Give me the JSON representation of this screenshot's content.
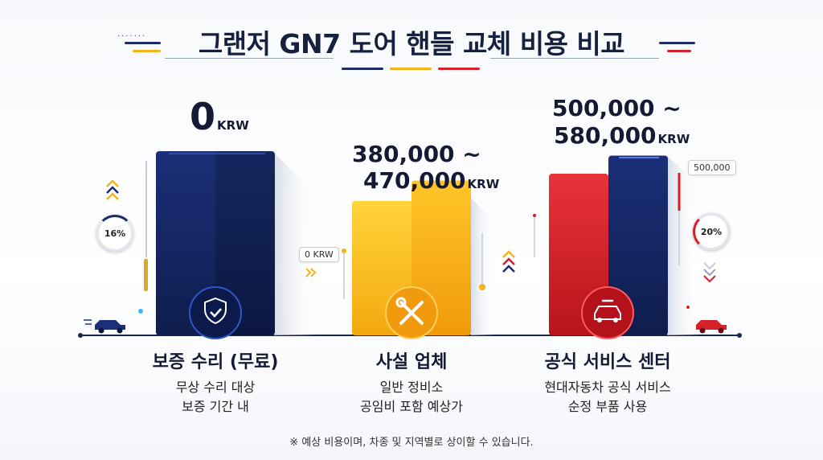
{
  "title": "그랜저 GN7 도어 핸들 교체 비용 비교",
  "colors": {
    "navy": "#13245e",
    "gold": "#f5b21a",
    "red": "#d6202a",
    "dark_text": "#141a33"
  },
  "value_labels": {
    "warranty_value": "0",
    "warranty_unit": "KRW",
    "private_line1": "380,000 ~",
    "private_line2": "470,000",
    "private_unit": "KRW",
    "official_line1": "500,000 ~",
    "official_line2": "580,000",
    "official_unit": "KRW"
  },
  "side_labels": {
    "zero_tag": "0 KRW",
    "official_tag": "500,000",
    "left_ring": "16%",
    "right_ring": "20%"
  },
  "categories": [
    {
      "title": "보증 수리 (무료)",
      "desc1": "무상 수리 대상",
      "desc2": "보증 기간 내",
      "icon": "shield-check-icon"
    },
    {
      "title": "사설 업체",
      "desc1": "일반 정비소",
      "desc2": "공임비 포함 예상가",
      "icon": "wrench-screwdriver-icon"
    },
    {
      "title": "공식 서비스 센터",
      "desc1": "현대자동차 공식 서비스",
      "desc2": "순정 부품 사용",
      "icon": "car-wrench-icon"
    }
  ],
  "chart_data": {
    "type": "bar",
    "categories": [
      "보증 수리 (무료)",
      "사설 업체",
      "공식 서비스 센터"
    ],
    "unit": "KRW",
    "ranges": [
      {
        "category": "보증 수리 (무료)",
        "min": 0,
        "max": 0
      },
      {
        "category": "사설 업체",
        "min": 380000,
        "max": 470000
      },
      {
        "category": "공식 서비스 센터",
        "min": 500000,
        "max": 580000
      }
    ]
  },
  "note": "※ 예상 비용이며, 차종 및 지역별로 상이할 수 있습니다."
}
